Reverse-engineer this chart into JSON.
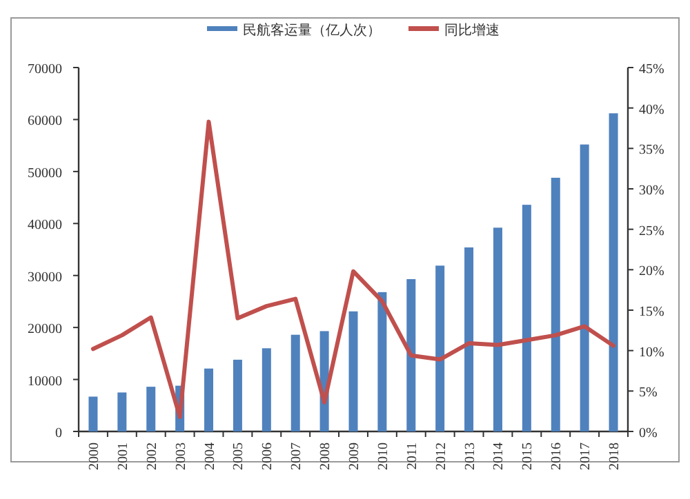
{
  "chart_data": {
    "type": "bar",
    "categories": [
      "2000",
      "2001",
      "2002",
      "2003",
      "2004",
      "2005",
      "2006",
      "2007",
      "2008",
      "2009",
      "2010",
      "2011",
      "2012",
      "2013",
      "2014",
      "2015",
      "2016",
      "2017",
      "2018"
    ],
    "series": [
      {
        "name": "民航客运量（亿人次）",
        "color": "#4f81bd",
        "values": [
          6700,
          7500,
          8600,
          8800,
          12100,
          13800,
          16000,
          18600,
          19300,
          23100,
          26800,
          29300,
          31900,
          35400,
          39200,
          43600,
          48800,
          55200,
          61200
        ]
      },
      {
        "name": "同比增速",
        "type": "line",
        "axis": "y2",
        "color": "#c0504d",
        "values": [
          10.2,
          11.9,
          14.1,
          1.8,
          38.3,
          14.0,
          15.5,
          16.4,
          3.6,
          19.8,
          16.1,
          9.4,
          8.9,
          10.9,
          10.7,
          11.3,
          11.9,
          13.0,
          10.6
        ]
      }
    ],
    "ylim": [
      0,
      70000
    ],
    "yticks": [
      0,
      10000,
      20000,
      30000,
      40000,
      50000,
      60000,
      70000
    ],
    "y2lim": [
      0,
      45
    ],
    "y2ticks": [
      {
        "value": 0,
        "label": "0%"
      },
      {
        "value": 5,
        "label": "5%"
      },
      {
        "value": 10,
        "label": "10%"
      },
      {
        "value": 15,
        "label": "15%"
      },
      {
        "value": 20,
        "label": "20%"
      },
      {
        "value": 25,
        "label": "25%"
      },
      {
        "value": 30,
        "label": "30%"
      },
      {
        "value": 35,
        "label": "35%"
      },
      {
        "value": 40,
        "label": "40%"
      },
      {
        "value": 45,
        "label": "45%"
      }
    ],
    "legend": "top"
  }
}
